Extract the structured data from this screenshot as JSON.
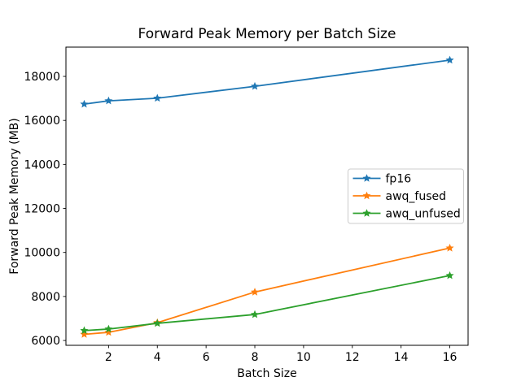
{
  "figure": {
    "background": "#ffffff",
    "axes_edge_color": "#000000",
    "legend_border_color": "#cccccc"
  },
  "chart_data": {
    "type": "line",
    "title": "Forward Peak Memory per Batch Size",
    "xlabel": "Batch Size",
    "ylabel": "Forward Peak Memory (MB)",
    "x": [
      1,
      2,
      4,
      8,
      16
    ],
    "series": [
      {
        "name": "fp16",
        "color": "#1f77b4",
        "values": [
          16740,
          16890,
          17010,
          17550,
          18740
        ]
      },
      {
        "name": "awq_fused",
        "color": "#ff7f0e",
        "values": [
          6280,
          6370,
          6810,
          8200,
          10200
        ]
      },
      {
        "name": "awq_unfused",
        "color": "#2ca02c",
        "values": [
          6450,
          6520,
          6780,
          7180,
          8950
        ]
      }
    ],
    "marker": "star",
    "xlim": [
      0.25,
      16.75
    ],
    "ylim": [
      5780,
      19330
    ],
    "xticks": [
      2,
      4,
      6,
      8,
      10,
      12,
      14,
      16
    ],
    "yticks": [
      6000,
      8000,
      10000,
      12000,
      14000,
      16000,
      18000
    ],
    "grid": false,
    "legend_position": "center-right"
  }
}
